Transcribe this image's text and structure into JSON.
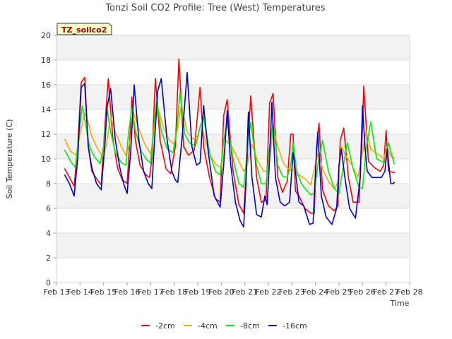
{
  "chart_data": {
    "type": "line",
    "title": "Tonzi Soil CO2 Profile: Tree (West) Temperatures",
    "xlabel": "Time",
    "ylabel": "Soil Temperature (C)",
    "site_label": "TZ_soilco2",
    "xlim": [
      13,
      28
    ],
    "ylim": [
      0,
      20
    ],
    "y_ticks": [
      0,
      2,
      4,
      6,
      8,
      10,
      12,
      14,
      16,
      18,
      20
    ],
    "x_tick_labels": [
      "Feb 13",
      "Feb 14",
      "Feb 15",
      "Feb 16",
      "Feb 17",
      "Feb 18",
      "Feb 19",
      "Feb 20",
      "Feb 21",
      "Feb 22",
      "Feb 23",
      "Feb 24",
      "Feb 25",
      "Feb 26",
      "Feb 27",
      "Feb 28"
    ],
    "grid": "horizontal bands",
    "legend_position": "bottom",
    "series": [
      {
        "name": "-2cm",
        "color": "#ff0000",
        "x": [
          13.35,
          13.55,
          13.75,
          13.9,
          14.05,
          14.2,
          14.35,
          14.5,
          14.7,
          14.9,
          15.05,
          15.2,
          15.4,
          15.6,
          15.8,
          16.0,
          16.1,
          16.2,
          16.35,
          16.55,
          16.8,
          16.95,
          17.05,
          17.2,
          17.4,
          17.65,
          17.85,
          18.05,
          18.2,
          18.4,
          18.6,
          18.85,
          19.1,
          19.25,
          19.5,
          19.75,
          19.95,
          20.1,
          20.25,
          20.5,
          20.75,
          20.95,
          21.1,
          21.25,
          21.5,
          21.7,
          21.9,
          22.05,
          22.2,
          22.4,
          22.6,
          22.8,
          22.95,
          23.05,
          23.15,
          23.3,
          23.55,
          23.8,
          23.95,
          24.05,
          24.15,
          24.3,
          24.55,
          24.8,
          24.95,
          25.05,
          25.2,
          25.4,
          25.6,
          25.85,
          26.0,
          26.05,
          26.25,
          26.5,
          26.75,
          26.9,
          27.0,
          27.1,
          27.35
        ],
        "y": [
          9.2,
          8.5,
          7.8,
          11,
          16.2,
          16.6,
          11,
          9,
          8.4,
          7.9,
          12.5,
          16.5,
          11.5,
          9.2,
          8.3,
          8.0,
          11,
          15,
          11.5,
          9.5,
          8.7,
          8.5,
          10,
          16.5,
          11.5,
          9.2,
          8.8,
          11,
          18.1,
          11,
          10.3,
          10.7,
          15.8,
          11,
          8.5,
          6.8,
          6.5,
          13.5,
          14.8,
          9,
          6.3,
          5.6,
          10,
          15.1,
          8.5,
          6.5,
          6.7,
          14.5,
          15.3,
          8.5,
          7.3,
          8.2,
          12.0,
          12.0,
          7.4,
          7.0,
          6.0,
          5.6,
          5.6,
          11,
          12.9,
          7.5,
          6.2,
          5.8,
          6.2,
          11.5,
          12.5,
          8.5,
          6.5,
          6.5,
          12.5,
          15.9,
          9.8,
          9.3,
          9.0,
          9.5,
          12.3,
          9.0,
          8.9
        ]
      },
      {
        "name": "-4cm",
        "color": "#ffa500",
        "x": [
          13.35,
          13.6,
          13.85,
          14.0,
          14.2,
          14.35,
          14.5,
          14.75,
          14.95,
          15.1,
          15.3,
          15.5,
          15.75,
          15.95,
          16.1,
          16.3,
          16.5,
          16.75,
          17.0,
          17.1,
          17.3,
          17.55,
          17.8,
          18.0,
          18.15,
          18.3,
          18.55,
          18.8,
          19.0,
          19.15,
          19.3,
          19.55,
          19.8,
          20.0,
          20.2,
          20.45,
          20.7,
          20.95,
          21.1,
          21.3,
          21.55,
          21.8,
          22.0,
          22.2,
          22.4,
          22.65,
          22.9,
          23.1,
          23.3,
          23.55,
          23.8,
          23.95,
          24.1,
          24.3,
          24.55,
          24.8,
          24.95,
          25.1,
          25.3,
          25.55,
          25.8,
          26.0,
          26.15,
          26.35,
          26.55,
          26.8,
          26.9,
          27.05,
          27.2,
          27.35
        ],
        "y": [
          11.6,
          10.6,
          10.3,
          12,
          13.7,
          13.0,
          11.8,
          10.8,
          10.2,
          11,
          13.4,
          12.2,
          11,
          10.3,
          11.2,
          13.6,
          12.4,
          11.2,
          10.4,
          11.5,
          14.2,
          12.5,
          11.5,
          11.2,
          12.5,
          14.4,
          12.2,
          11.6,
          11.8,
          12.9,
          11.6,
          10.2,
          9.5,
          9.3,
          11.5,
          11.0,
          10.0,
          9.0,
          9.5,
          11.2,
          9.8,
          9.0,
          9.0,
          12.5,
          11.0,
          9.6,
          9.1,
          9.1,
          8.7,
          8.4,
          7.9,
          9.2,
          10.4,
          9.2,
          8.2,
          7.6,
          8.0,
          11.0,
          10.2,
          9.5,
          8.5,
          10.5,
          12.3,
          10.8,
          10.5,
          10.2,
          10.0,
          11.0,
          10.2,
          10.1
        ]
      },
      {
        "name": "-8cm",
        "color": "#00ee00",
        "x": [
          13.35,
          13.6,
          13.8,
          13.95,
          14.1,
          14.25,
          14.4,
          14.6,
          14.85,
          15.0,
          15.15,
          15.3,
          15.5,
          15.75,
          15.95,
          16.05,
          16.2,
          16.35,
          16.6,
          16.85,
          17.0,
          17.1,
          17.25,
          17.45,
          17.7,
          17.95,
          18.1,
          18.25,
          18.45,
          18.65,
          18.9,
          19.1,
          19.25,
          19.5,
          19.75,
          19.95,
          20.1,
          20.25,
          20.5,
          20.75,
          20.95,
          21.1,
          21.25,
          21.5,
          21.7,
          21.9,
          22.05,
          22.2,
          22.4,
          22.6,
          22.8,
          22.95,
          23.05,
          23.2,
          23.4,
          23.6,
          23.8,
          23.95,
          24.1,
          24.3,
          24.55,
          24.8,
          25.0,
          25.15,
          25.35,
          25.6,
          25.85,
          26.0,
          26.15,
          26.35,
          26.6,
          26.8,
          26.95,
          27.1,
          27.35
        ],
        "y": [
          10.7,
          9.8,
          9.3,
          12,
          14.3,
          12.6,
          11,
          10.2,
          9.6,
          11,
          14,
          12.2,
          10.5,
          9.7,
          9.5,
          12,
          14.1,
          12.3,
          10.6,
          9.9,
          9.7,
          12,
          14.7,
          12.3,
          10.8,
          10.5,
          12.3,
          15.4,
          12.0,
          11.3,
          11.0,
          12.6,
          13.4,
          10.5,
          9.0,
          8.7,
          11.5,
          13.0,
          10.0,
          8.0,
          7.7,
          10.5,
          13.0,
          9.5,
          8.0,
          8.0,
          11.0,
          13.0,
          9.5,
          8.6,
          8.5,
          9.5,
          11.3,
          9.0,
          8.0,
          7.5,
          7.1,
          7.2,
          9.5,
          11.5,
          9.0,
          7.6,
          7.2,
          9.0,
          11.3,
          9.2,
          7.7,
          7.6,
          10.8,
          13.0,
          10.0,
          9.8,
          9.7,
          11.3,
          9.6
        ]
      },
      {
        "name": "-16cm",
        "color": "#0000cc",
        "x": [
          13.35,
          13.55,
          13.75,
          13.9,
          14.05,
          14.2,
          14.35,
          14.5,
          14.7,
          14.9,
          15.05,
          15.15,
          15.3,
          15.5,
          15.7,
          15.85,
          16.0,
          16.15,
          16.3,
          16.5,
          16.7,
          16.9,
          17.05,
          17.15,
          17.3,
          17.45,
          17.7,
          17.9,
          18.05,
          18.15,
          18.35,
          18.55,
          18.75,
          18.95,
          19.1,
          19.25,
          19.45,
          19.7,
          19.95,
          20.1,
          20.25,
          20.4,
          20.6,
          20.8,
          20.95,
          21.05,
          21.15,
          21.3,
          21.5,
          21.7,
          21.85,
          21.95,
          22.05,
          22.15,
          22.3,
          22.5,
          22.7,
          22.9,
          23.05,
          23.15,
          23.3,
          23.5,
          23.75,
          23.9,
          24.0,
          24.1,
          24.25,
          24.45,
          24.7,
          24.9,
          25.0,
          25.1,
          25.25,
          25.45,
          25.7,
          25.9,
          26.0,
          26.1,
          26.2,
          26.4,
          26.6,
          26.8,
          26.95,
          27.05,
          27.2,
          27.3,
          27.35
        ],
        "y": [
          8.7,
          8.0,
          7.0,
          10,
          15.8,
          16.1,
          11,
          9.3,
          8.0,
          7.5,
          11,
          14.2,
          15.7,
          11.5,
          9.2,
          8.0,
          7.2,
          10.5,
          16.0,
          11.5,
          9.0,
          8.0,
          7.6,
          11,
          15.5,
          16.5,
          11.5,
          9.0,
          8.3,
          8.1,
          12,
          17.0,
          11.0,
          9.5,
          9.7,
          14.3,
          10.5,
          7.0,
          6.1,
          9.5,
          13.9,
          9.5,
          6.5,
          5.0,
          4.5,
          8,
          13.8,
          8.5,
          5.5,
          5.3,
          7.0,
          6.3,
          10,
          14.6,
          8.5,
          6.5,
          6.2,
          6.5,
          10.5,
          9.0,
          6.5,
          6.2,
          4.7,
          4.8,
          9.0,
          12.2,
          7.0,
          5.3,
          4.7,
          6.0,
          9.5,
          10.8,
          8.5,
          6.0,
          5.2,
          8.5,
          14.3,
          11.0,
          9.0,
          8.5,
          8.5,
          8.5,
          9.0,
          10.8,
          8.0,
          8.0,
          8.1
        ]
      }
    ]
  }
}
